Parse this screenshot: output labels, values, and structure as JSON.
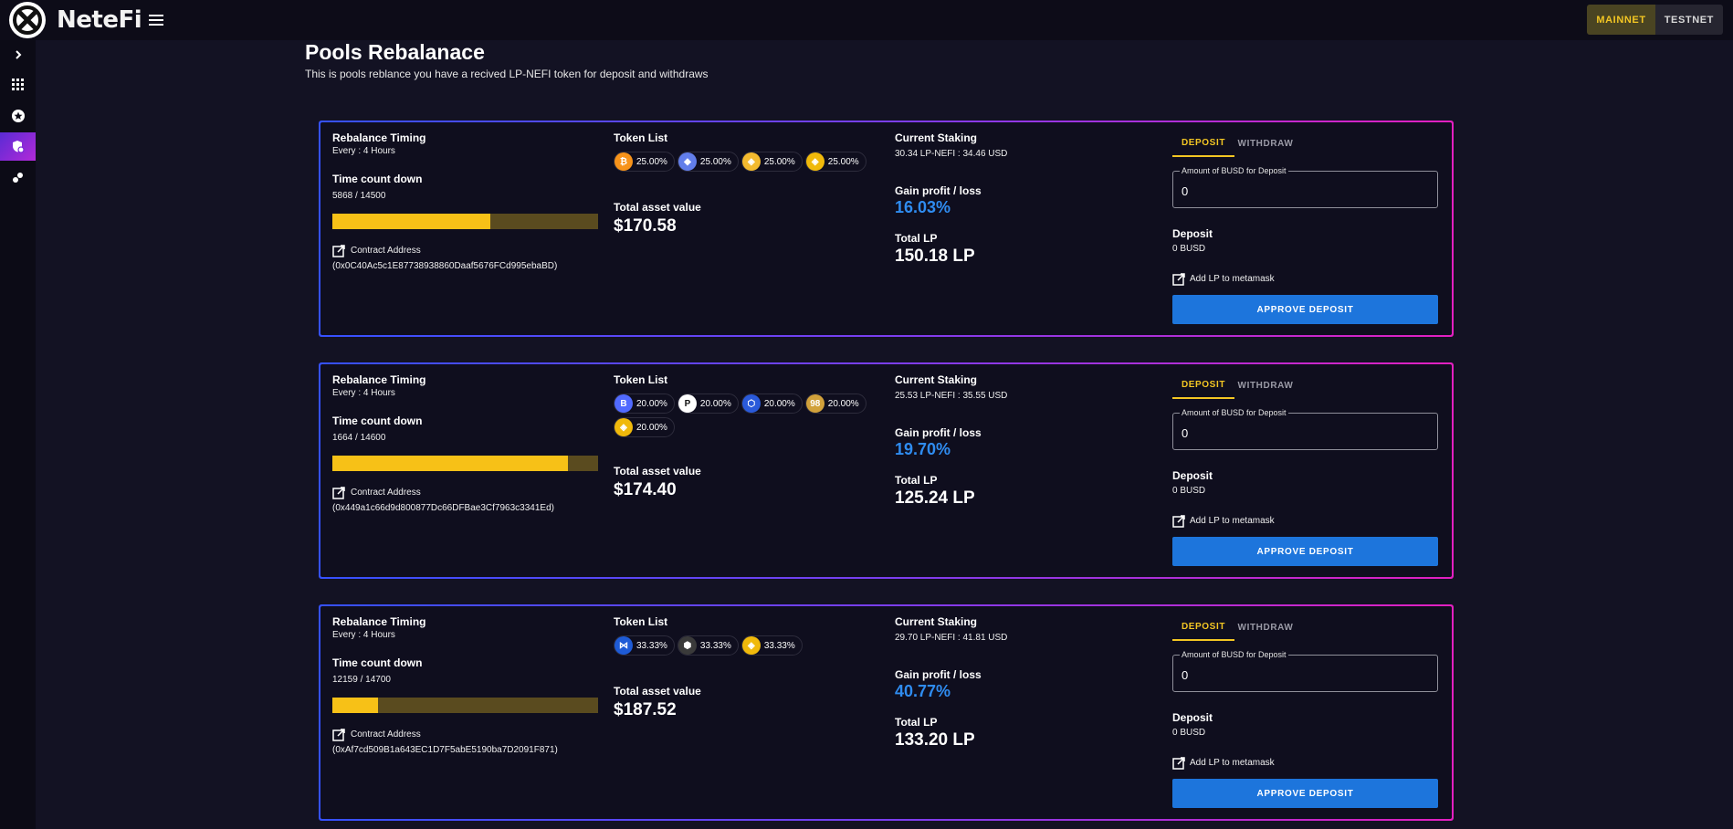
{
  "app": {
    "name": "NeteFi"
  },
  "header": {
    "networks": [
      "MAINNET",
      "TESTNET"
    ],
    "active_network": "MAINNET"
  },
  "sidebar": {
    "items": [
      {
        "icon": "chevron-right-icon"
      },
      {
        "icon": "grid-icon"
      },
      {
        "icon": "star-badge-icon"
      },
      {
        "icon": "shield-icon",
        "active": true
      },
      {
        "icon": "pools-icon"
      }
    ]
  },
  "page": {
    "title": "Pools Rebalanace",
    "subtitle": "This is pools reblance you have a recived LP-NEFI token for deposit and withdraws"
  },
  "labels": {
    "rebalance_timing": "Rebalance Timing",
    "time_count_down": "Time count down",
    "contract_address": "Contract Address",
    "token_list": "Token List",
    "total_asset_value": "Total asset value",
    "current_staking": "Current Staking",
    "gain_profit_loss": "Gain profit / loss",
    "total_lp": "Total LP",
    "deposit_tab": "DEPOSIT",
    "withdraw_tab": "WITHDRAW",
    "amount_label": "Amount of BUSD for Deposit",
    "deposit": "Deposit",
    "add_lp": "Add LP to metamask",
    "approve_deposit": "APPROVE DEPOSIT"
  },
  "colors": {
    "accent_yellow": "#f3c623",
    "primary_blue": "#1d75dc",
    "gain_blue": "#2f8cf0",
    "progress_fill": "#f7c117",
    "progress_track": "#5a4b1f"
  },
  "pools": [
    {
      "every": "Every : 4 Hours",
      "countdown": "5868 / 14500",
      "progress": 0.595,
      "contract": "(0x0C40Ac5c1E87738938860Daaf5676FCd995ebaBD)",
      "tokens": [
        {
          "icon": "bitcoin-icon",
          "color": "#f7931a",
          "glyph": "₿",
          "pct": "25.00%"
        },
        {
          "icon": "ethereum-icon",
          "color": "#627eea",
          "glyph": "◆",
          "pct": "25.00%"
        },
        {
          "icon": "bnb-icon",
          "color": "#f3ba2f",
          "glyph": "◈",
          "pct": "25.00%"
        },
        {
          "icon": "busd-icon",
          "color": "#f0b90b",
          "glyph": "◈",
          "pct": "25.00%"
        }
      ],
      "total_asset": "$170.58",
      "staking": "30.34 LP-NEFI : 34.46 USD",
      "gain": "16.03%",
      "total_lp": "150.18 LP",
      "amount": "0",
      "deposit_value": "0 BUSD"
    },
    {
      "every": "Every : 4 Hours",
      "countdown": "1664 / 14600",
      "progress": 0.886,
      "contract": "(0x449a1c66d9d800877Dc66DFBae3Cf7963c3341Ed)",
      "tokens": [
        {
          "icon": "band-icon",
          "color": "#516aff",
          "glyph": "B",
          "pct": "20.00%"
        },
        {
          "icon": "polkadot-icon",
          "color": "#ffffff",
          "glyph": "P",
          "pct": "20.00%"
        },
        {
          "icon": "chainlink-icon",
          "color": "#2a5ada",
          "glyph": "⬡",
          "pct": "20.00%"
        },
        {
          "icon": "pancake-icon",
          "color": "#d1a13b",
          "glyph": "98",
          "pct": "20.00%"
        },
        {
          "icon": "busd-icon",
          "color": "#f0b90b",
          "glyph": "◈",
          "pct": "20.00%"
        }
      ],
      "total_asset": "$174.40",
      "staking": "25.53 LP-NEFI : 35.55 USD",
      "gain": "19.70%",
      "total_lp": "125.24 LP",
      "amount": "0",
      "deposit_value": "0 BUSD"
    },
    {
      "every": "Every : 4 Hours",
      "countdown": "12159 / 14700",
      "progress": 0.173,
      "contract": "(0xAf7cd509B1a643EC1D7F5abE5190ba7D2091F871)",
      "tokens": [
        {
          "icon": "wing-icon",
          "color": "#1e5bd6",
          "glyph": "⋈",
          "pct": "33.33%"
        },
        {
          "icon": "cube-icon",
          "color": "#3a3a3a",
          "glyph": "⬢",
          "pct": "33.33%"
        },
        {
          "icon": "busd-icon",
          "color": "#f0b90b",
          "glyph": "◈",
          "pct": "33.33%"
        }
      ],
      "total_asset": "$187.52",
      "staking": "29.70 LP-NEFI : 41.81 USD",
      "gain": "40.77%",
      "total_lp": "133.20 LP",
      "amount": "0",
      "deposit_value": "0 BUSD"
    }
  ]
}
